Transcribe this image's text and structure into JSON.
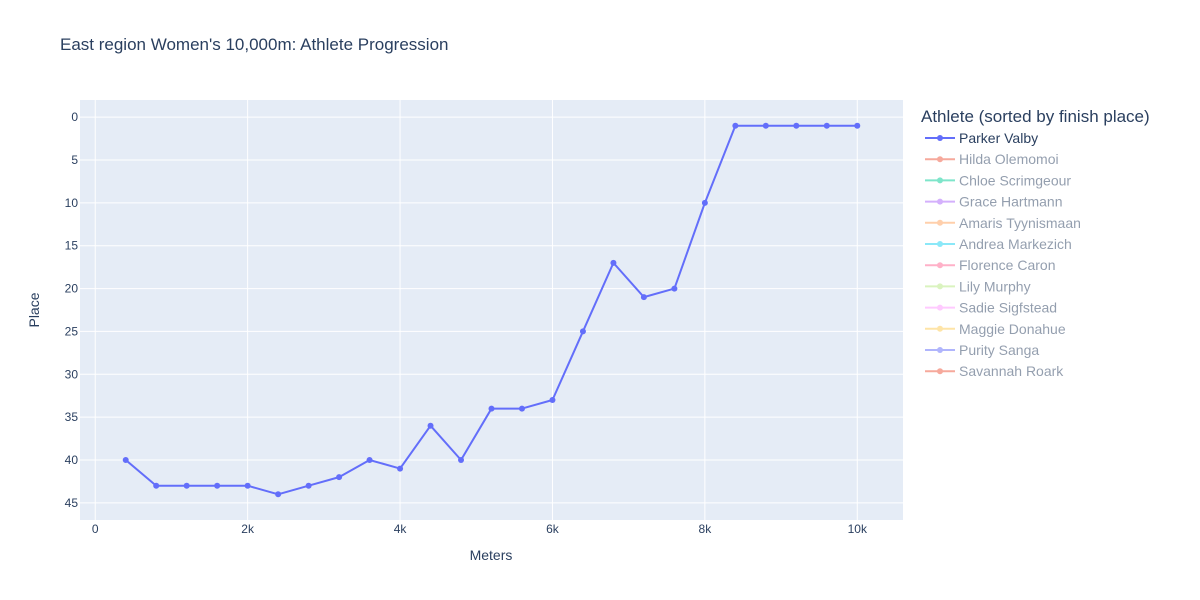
{
  "chart_data": {
    "type": "line",
    "title": "East region Women's 10,000m: Athlete Progression",
    "xlabel": "Meters",
    "ylabel": "Place",
    "xlim": [
      -200,
      10600
    ],
    "ylim": [
      47,
      -2
    ],
    "y_reversed": true,
    "x_ticks": [
      0,
      2000,
      4000,
      6000,
      8000,
      10000
    ],
    "x_tick_labels": [
      "0",
      "2k",
      "4k",
      "6k",
      "8k",
      "10k"
    ],
    "y_ticks": [
      0,
      5,
      10,
      15,
      20,
      25,
      30,
      35,
      40,
      45
    ],
    "y_tick_labels": [
      "0",
      "5",
      "10",
      "15",
      "20",
      "25",
      "30",
      "35",
      "40",
      "45"
    ],
    "grid": true,
    "legend_title": "Athlete (sorted by finish place)",
    "legend_position": "right",
    "series": [
      {
        "name": "Parker Valby",
        "color": "#636efa",
        "visible": true,
        "x": [
          400,
          800,
          1200,
          1600,
          2000,
          2400,
          2800,
          3200,
          3600,
          4000,
          4400,
          4800,
          5200,
          5600,
          6000,
          6400,
          6800,
          7200,
          7600,
          8000,
          8400,
          8800,
          9200,
          9600,
          10000
        ],
        "y": [
          40,
          43,
          43,
          43,
          43,
          44,
          43,
          42,
          40,
          41,
          36,
          40,
          34,
          34,
          33,
          25,
          17,
          21,
          20,
          10,
          1,
          1,
          1,
          1,
          1
        ]
      },
      {
        "name": "Hilda Olemomoi",
        "color": "#EF553B",
        "visible": false
      },
      {
        "name": "Chloe Scrimgeour",
        "color": "#00cc96",
        "visible": false
      },
      {
        "name": "Grace Hartmann",
        "color": "#ab63fa",
        "visible": false
      },
      {
        "name": "Amaris Tyynismaan",
        "color": "#FFA15A",
        "visible": false
      },
      {
        "name": "Andrea Markezich",
        "color": "#19d3f3",
        "visible": false
      },
      {
        "name": "Florence Caron",
        "color": "#FF6692",
        "visible": false
      },
      {
        "name": "Lily Murphy",
        "color": "#B6E880",
        "visible": false
      },
      {
        "name": "Sadie Sigfstead",
        "color": "#FF97FF",
        "visible": false
      },
      {
        "name": "Maggie Donahue",
        "color": "#FECB52",
        "visible": false
      },
      {
        "name": "Purity Sanga",
        "color": "#636efa",
        "visible": false
      },
      {
        "name": "Savannah Roark",
        "color": "#EF553B",
        "visible": false
      }
    ]
  }
}
